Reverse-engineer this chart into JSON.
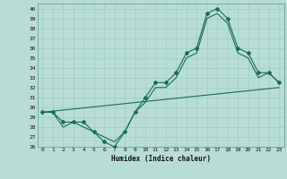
{
  "xlabel": "Humidex (Indice chaleur)",
  "xlim": [
    -0.5,
    23.5
  ],
  "ylim": [
    26,
    40.5
  ],
  "yticks": [
    26,
    27,
    28,
    29,
    30,
    31,
    32,
    33,
    34,
    35,
    36,
    37,
    38,
    39,
    40
  ],
  "xticks": [
    0,
    1,
    2,
    3,
    4,
    5,
    6,
    7,
    8,
    9,
    10,
    11,
    12,
    13,
    14,
    15,
    16,
    17,
    18,
    19,
    20,
    21,
    22,
    23
  ],
  "bg_color": "#b8ddd6",
  "line_color": "#1a6b5a",
  "grid_color": "#9fccc4",
  "main_line_x": [
    0,
    1,
    2,
    3,
    4,
    5,
    6,
    7,
    8,
    9,
    10,
    11,
    12,
    13,
    14,
    15,
    16,
    17,
    18,
    19,
    20,
    21,
    22,
    23
  ],
  "main_line_y": [
    29.5,
    29.5,
    28.5,
    28.5,
    28.5,
    27.5,
    26.5,
    26.0,
    27.5,
    29.5,
    31.0,
    32.5,
    32.5,
    33.5,
    35.5,
    36.0,
    39.5,
    40.0,
    39.0,
    36.0,
    35.5,
    33.5,
    33.5,
    32.5
  ],
  "trend_line_x": [
    0,
    23
  ],
  "trend_line_y": [
    29.5,
    32.0
  ],
  "envelope_line_x": [
    0,
    1,
    2,
    3,
    4,
    5,
    6,
    7,
    8,
    9,
    10,
    11,
    12,
    13,
    14,
    15,
    16,
    17,
    18,
    19,
    20,
    21,
    22,
    23
  ],
  "envelope_line_y": [
    29.5,
    29.5,
    28.0,
    28.5,
    28.0,
    27.5,
    27.0,
    26.5,
    27.5,
    29.5,
    30.5,
    32.0,
    32.0,
    33.0,
    35.0,
    35.5,
    39.0,
    39.5,
    38.5,
    35.5,
    35.0,
    33.0,
    33.5,
    32.5
  ]
}
